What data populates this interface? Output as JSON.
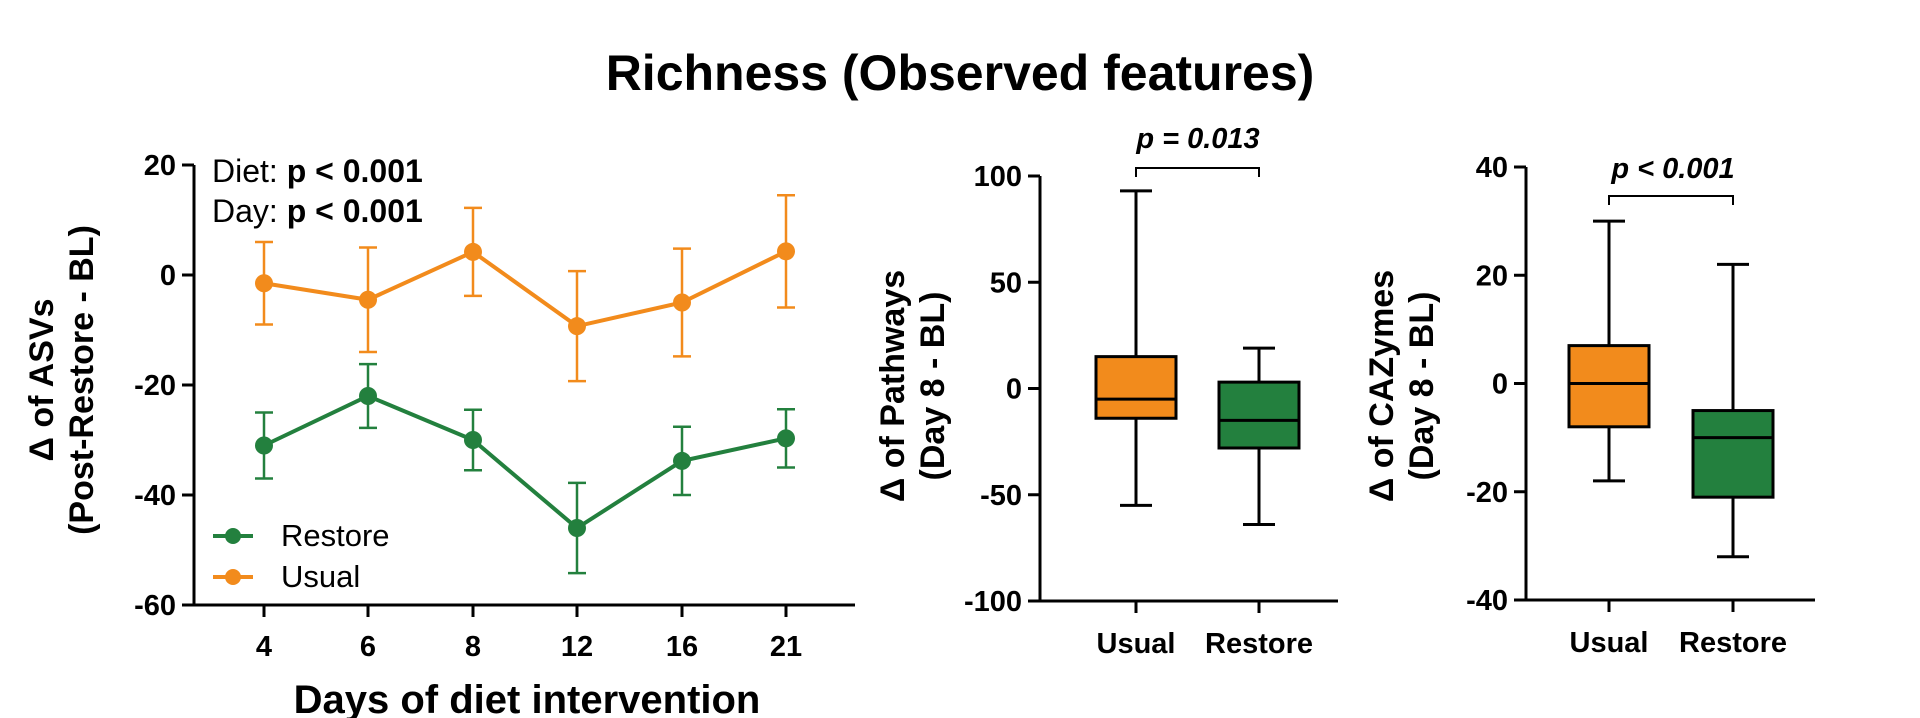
{
  "title": "Richness (Observed features)",
  "chart_data": [
    {
      "type": "line",
      "xlabel": "Days of diet intervention",
      "ylabel": "Δ of ASVs",
      "ylabel2": "(Post-Restore - BL)",
      "categories": [
        "4",
        "6",
        "8",
        "12",
        "16",
        "21"
      ],
      "yticks": [
        "20",
        "0",
        "-20",
        "-40",
        "-60"
      ],
      "ylim": [
        -60,
        20
      ],
      "series": [
        {
          "name": "Usual",
          "color": "#f28b1c",
          "values": [
            -1.5,
            -4.5,
            4.2,
            -9.3,
            -5,
            4.3
          ],
          "err": [
            7.5,
            9.5,
            8,
            10,
            9.8,
            10.2
          ]
        },
        {
          "name": "Restore",
          "color": "#23803e",
          "values": [
            -31,
            -22,
            -30,
            -46,
            -33.8,
            -29.7
          ],
          "err": [
            6,
            5.8,
            5.5,
            8.2,
            6.2,
            5.3
          ]
        }
      ],
      "legend": [
        "Restore",
        "Usual"
      ],
      "annotations": {
        "diet_label": "Diet: ",
        "diet_p": "p < 0.001",
        "day_label": "Day: ",
        "day_p": "p < 0.001"
      }
    },
    {
      "type": "box",
      "ylabel": "Δ of Pathways",
      "ylabel2": "(Day 8 - BL)",
      "categories": [
        "Usual",
        "Restore"
      ],
      "yticks": [
        "100",
        "50",
        "0",
        "-50",
        "-100"
      ],
      "ylim": [
        -100,
        100
      ],
      "boxes": [
        {
          "name": "Usual",
          "min": -55,
          "q1": -14,
          "median": -5,
          "q3": 15,
          "max": 93,
          "color": "#f28b1c"
        },
        {
          "name": "Restore",
          "min": -64,
          "q1": -28,
          "median": -15,
          "q3": 3,
          "max": 19,
          "color": "#23803e"
        }
      ],
      "p_value": "p = 0.013"
    },
    {
      "type": "box",
      "ylabel": "Δ of CAZymes",
      "ylabel2": "(Day 8 - BL)",
      "categories": [
        "Usual",
        "Restore"
      ],
      "yticks": [
        "40",
        "20",
        "0",
        "-20",
        "-40"
      ],
      "ylim": [
        -40,
        40
      ],
      "boxes": [
        {
          "name": "Usual",
          "min": -18,
          "q1": -8,
          "median": 0,
          "q3": 7,
          "max": 30,
          "color": "#f28b1c"
        },
        {
          "name": "Restore",
          "min": -32,
          "q1": -21,
          "median": -10,
          "q3": -5,
          "max": 22,
          "color": "#23803e"
        }
      ],
      "p_value": "p < 0.001"
    }
  ]
}
